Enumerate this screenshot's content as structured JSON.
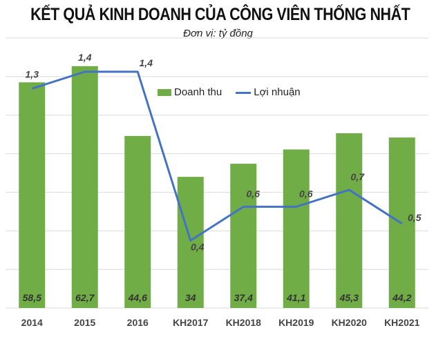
{
  "chart_data": {
    "type": "bar+line",
    "title": "KẾT QUẢ KINH DOANH CỦA CÔNG VIÊN THỐNG NHẤT",
    "subtitle": "Đơn vị: tỷ đồng",
    "categories": [
      "2014",
      "2015",
      "2016",
      "KH2017",
      "KH2018",
      "KH2019",
      "KH2020",
      "KH2021"
    ],
    "series": [
      {
        "name": "Doanh thu",
        "type": "bar",
        "axis": "primary",
        "color": "#70ad47",
        "values": [
          58.5,
          62.7,
          44.6,
          34,
          37.4,
          41.1,
          45.3,
          44.2
        ],
        "labels": [
          "58,5",
          "62,7",
          "44,6",
          "34",
          "37,4",
          "41,1",
          "45,3",
          "44,2"
        ]
      },
      {
        "name": "Lợi nhuận",
        "type": "line",
        "axis": "secondary",
        "color": "#4472c4",
        "values": [
          1.3,
          1.4,
          1.4,
          0.4,
          0.6,
          0.6,
          0.7,
          0.5
        ],
        "labels": [
          "1,3",
          "1,4",
          "1,4",
          "0,4",
          "0,6",
          "0,6",
          "0,7",
          "0,5"
        ]
      }
    ],
    "ylim": [
      0,
      70
    ],
    "y2lim": [
      0,
      1.6
    ],
    "grid": true,
    "legend": "top-center"
  }
}
